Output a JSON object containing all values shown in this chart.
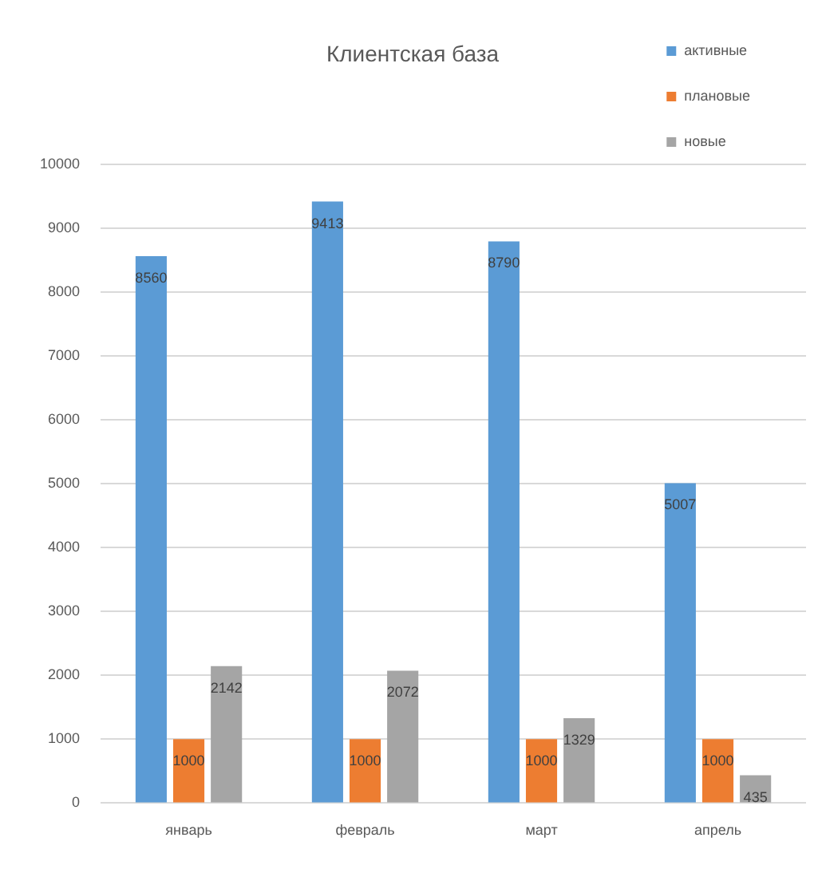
{
  "chart_data": {
    "type": "bar",
    "title": "Клиентская база",
    "categories": [
      "январь",
      "февраль",
      "март",
      "апрель"
    ],
    "series": [
      {
        "name": "активные",
        "color": "#5b9bd5",
        "values": [
          8560,
          9413,
          8790,
          5007
        ]
      },
      {
        "name": "плановые",
        "color": "#ed7d31",
        "values": [
          1000,
          1000,
          1000,
          1000
        ]
      },
      {
        "name": "новые",
        "color": "#a5a5a5",
        "values": [
          2142,
          2072,
          1329,
          435
        ]
      }
    ],
    "ylim": [
      0,
      10000
    ],
    "yticks": [
      0,
      1000,
      2000,
      3000,
      4000,
      5000,
      6000,
      7000,
      8000,
      9000,
      10000
    ],
    "grid": "y",
    "legend": "top right",
    "data_labels": true
  }
}
